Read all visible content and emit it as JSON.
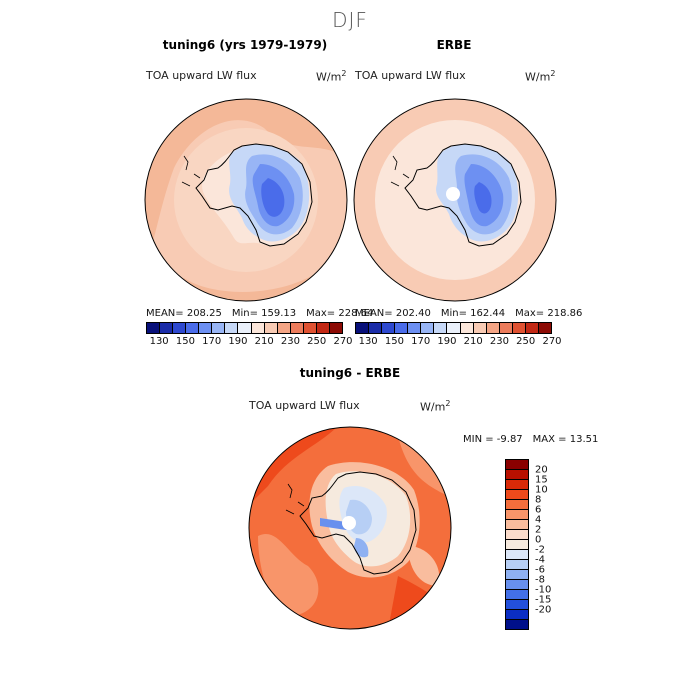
{
  "title": "DJF",
  "panels": [
    {
      "title": "tuning6 (yrs 1979-1979)",
      "variable": "TOA upward LW flux",
      "unit": "W/m",
      "unit_exp": "2",
      "stats": {
        "mean": "MEAN= 208.25",
        "min": "Min= 159.13",
        "max": "Max= 228.64"
      }
    },
    {
      "title": "ERBE",
      "variable": "TOA upward LW flux",
      "unit": "W/m",
      "unit_exp": "2",
      "stats": {
        "mean": "MEAN= 202.40",
        "min": "Min= 162.44",
        "max": "Max= 218.86"
      }
    },
    {
      "title": "tuning6 - ERBE",
      "variable": "TOA upward LW flux",
      "unit": "W/m",
      "unit_exp": "2",
      "stats": {
        "min": "MIN =   -9.87",
        "max": "MAX =   13.51"
      }
    }
  ],
  "colorbar_abs": {
    "colors": [
      "#08107a",
      "#1a2ca8",
      "#2e49d0",
      "#4a6cea",
      "#6d90f2",
      "#98b5f5",
      "#c6d8f7",
      "#eaf0fa",
      "#fbe6da",
      "#f8cbb4",
      "#f4a585",
      "#ec7c5c",
      "#e05232",
      "#c22814",
      "#8c0a04"
    ],
    "ticks": [
      "130",
      "150",
      "170",
      "190",
      "210",
      "230",
      "250",
      "270"
    ]
  },
  "colorbar_diff": {
    "colors": [
      "#8a0000",
      "#b81000",
      "#d92a08",
      "#ee4a1c",
      "#f46e3c",
      "#f8956a",
      "#f9bd9e",
      "#fbdccb",
      "#f6eade",
      "#dce7f8",
      "#b7cff5",
      "#8fb1f2",
      "#6890ee",
      "#4370e8",
      "#2350dc",
      "#0b2ec4",
      "#00108a"
    ],
    "ticks": [
      "20",
      "15",
      "10",
      "8",
      "6",
      "4",
      "2",
      "0",
      "-2",
      "-4",
      "-6",
      "-8",
      "-10",
      "-15",
      "-20"
    ]
  }
}
